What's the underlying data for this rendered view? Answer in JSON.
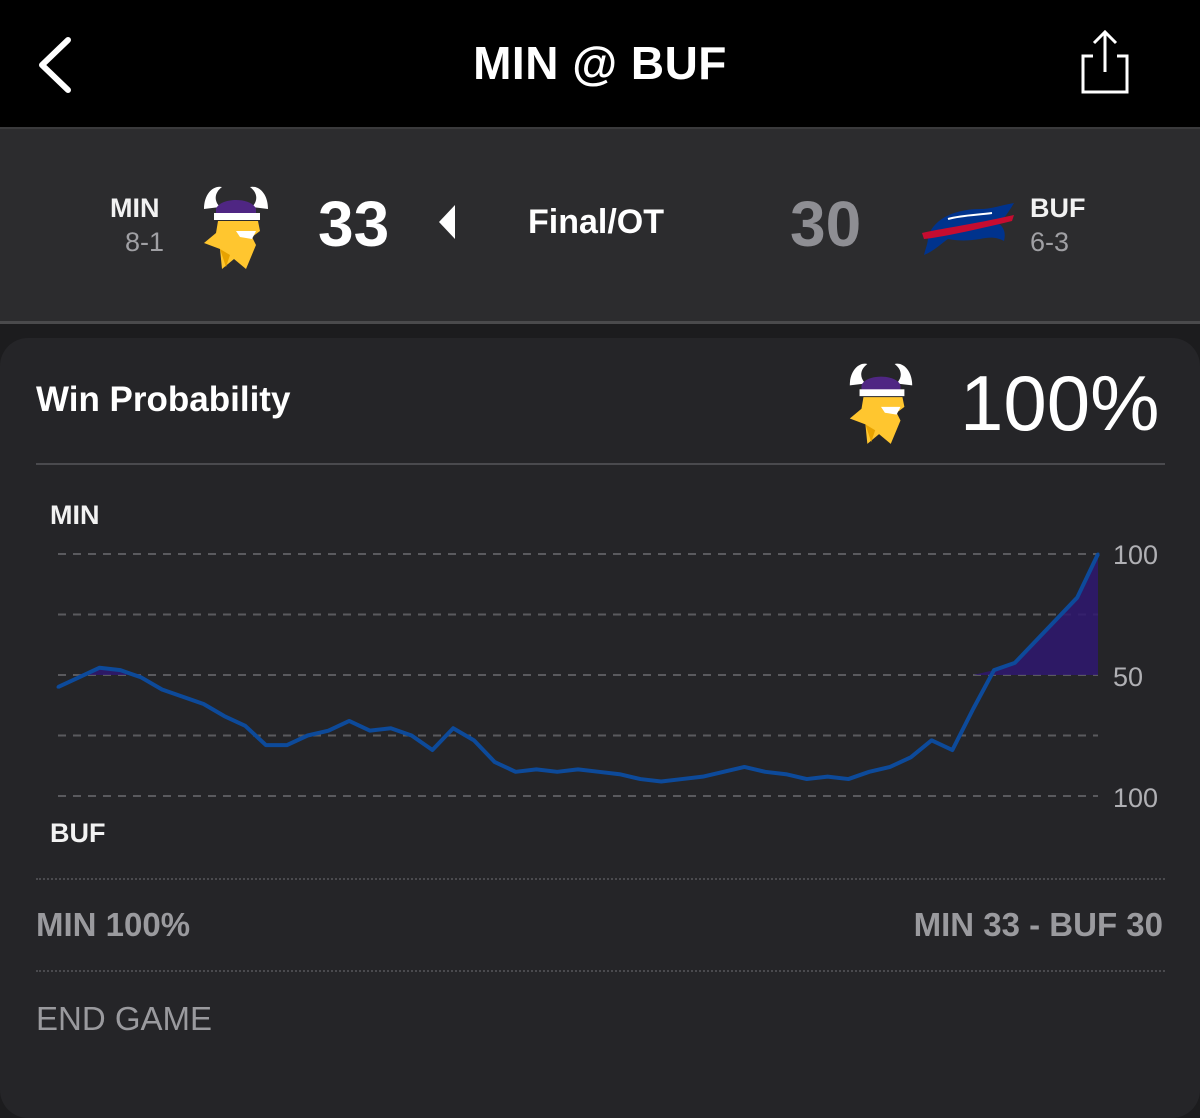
{
  "header": {
    "title": "MIN @ BUF",
    "back_icon": "chevron-left-icon",
    "share_icon": "share-icon"
  },
  "game": {
    "away": {
      "abbr": "MIN",
      "record": "8-1",
      "score": "33",
      "logo": "vikings-logo",
      "color": "#4f2683",
      "accent": "#ffc62f"
    },
    "home": {
      "abbr": "BUF",
      "record": "6-3",
      "score": "30",
      "logo": "bills-logo",
      "color": "#00338d",
      "accent": "#c60c30"
    },
    "status": "Final/OT",
    "winner_indicator": "caret-left-icon"
  },
  "win_probability": {
    "title": "Win Probability",
    "team_logo": "vikings-logo",
    "value": "100%",
    "top_label": "MIN",
    "bottom_label": "BUF",
    "tick_labels": [
      "100",
      "50",
      "100"
    ],
    "footer_left": "MIN 100%",
    "footer_right": "MIN 33  - BUF 30",
    "play_description": "END GAME",
    "line_color": "#0d4a9a",
    "min_fill_color": "#2f1770"
  },
  "chart_data": {
    "type": "line",
    "title": "Win Probability",
    "ylabel_top": "MIN",
    "ylabel_bottom": "BUF",
    "yticks": [
      "100",
      "50",
      "100"
    ],
    "ylim": [
      0,
      100
    ],
    "x": [
      0,
      2,
      4,
      6,
      8,
      10,
      12,
      14,
      16,
      18,
      20,
      22,
      24,
      26,
      28,
      30,
      32,
      34,
      36,
      38,
      40,
      42,
      44,
      46,
      48,
      50,
      52,
      54,
      56,
      58,
      60,
      62,
      64,
      66,
      68,
      70,
      72,
      74,
      76,
      78,
      80,
      82,
      84,
      86,
      88,
      90,
      92,
      94,
      96,
      98,
      100
    ],
    "series": [
      {
        "values": [
          45,
          49,
          53,
          52,
          49,
          44,
          41,
          38,
          33,
          29,
          21,
          21,
          25,
          27,
          31,
          27,
          28,
          25,
          19,
          28,
          23,
          14,
          10,
          11,
          10,
          11,
          10,
          9,
          7,
          6,
          7,
          8,
          10,
          12,
          10,
          9,
          7,
          8,
          7,
          10,
          12,
          16,
          23,
          19,
          36,
          52,
          55,
          64,
          73,
          82,
          100
        ]
      }
    ]
  }
}
